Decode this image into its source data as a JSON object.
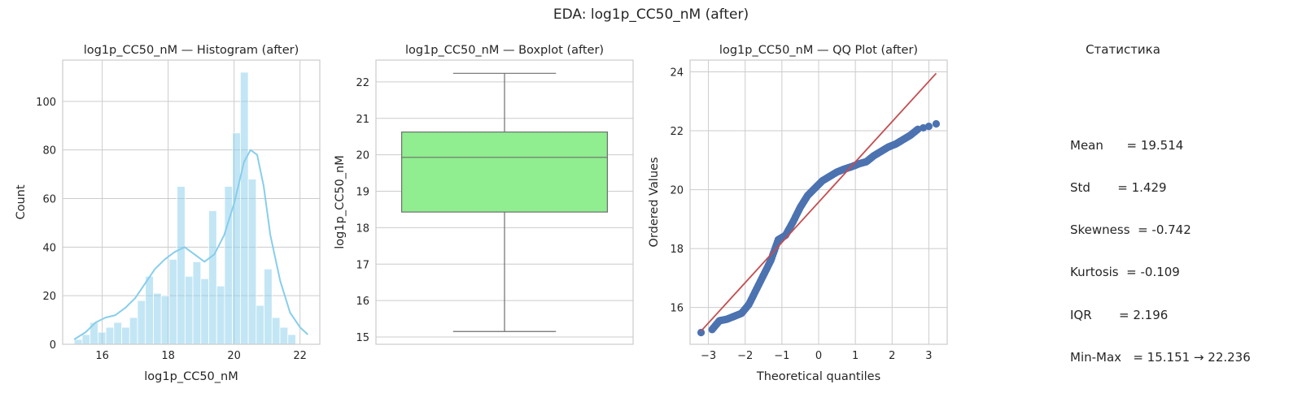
{
  "figure_title": "EDA: log1p_CC50_nM (after)",
  "colors": {
    "hist": "#87ceeb",
    "box": "#90ee90",
    "qq_points": "#4c72b0",
    "qq_line": "#c44e52",
    "grid": "#cccccc"
  },
  "chart_data": [
    {
      "type": "bar",
      "title": "log1p_CC50_nM — Histogram (after)",
      "xlabel": "log1p_CC50_nM",
      "ylabel": "Count",
      "xlim": [
        14.8,
        22.6
      ],
      "ylim": [
        0,
        117
      ],
      "xticks": [
        16,
        18,
        20,
        22
      ],
      "yticks": [
        0,
        20,
        40,
        60,
        80,
        100
      ],
      "grid": true,
      "bin_edges": [
        15.151,
        15.391,
        15.631,
        15.871,
        16.111,
        16.351,
        16.591,
        16.831,
        17.071,
        17.311,
        17.551,
        17.791,
        18.031,
        18.271,
        18.511,
        18.751,
        18.991,
        19.231,
        19.471,
        19.711,
        19.951,
        20.191,
        20.431,
        20.671,
        20.911,
        21.151,
        21.391,
        21.631,
        21.871,
        22.111,
        22.351
      ],
      "values": [
        2,
        4,
        9,
        5,
        7,
        9,
        7,
        11,
        18,
        28,
        21,
        20,
        35,
        65,
        28,
        34,
        27,
        55,
        24,
        65,
        87,
        112,
        68,
        16,
        31,
        11,
        7,
        4,
        0,
        0
      ],
      "kde": {
        "x": [
          15.15,
          15.5,
          15.8,
          16.1,
          16.4,
          16.7,
          17.0,
          17.3,
          17.6,
          17.9,
          18.2,
          18.5,
          18.8,
          19.1,
          19.4,
          19.7,
          20.0,
          20.3,
          20.5,
          20.7,
          20.9,
          21.1,
          21.4,
          21.7,
          22.0,
          22.236
        ],
        "y": [
          2,
          5,
          9,
          11,
          12,
          15,
          19,
          25,
          31,
          35,
          38,
          40,
          37,
          34,
          37,
          45,
          58,
          75,
          80,
          78,
          65,
          45,
          26,
          13,
          7,
          4
        ]
      }
    },
    {
      "type": "box",
      "title": "log1p_CC50_nM — Boxplot (after)",
      "ylabel": "log1p_CC50_nM",
      "ylim": [
        14.8,
        22.6
      ],
      "yticks": [
        15,
        16,
        17,
        18,
        19,
        20,
        21,
        22
      ],
      "grid": true,
      "min": 15.151,
      "q1": 18.43,
      "median": 19.93,
      "q3": 20.626,
      "max": 22.236
    },
    {
      "type": "scatter",
      "title": "log1p_CC50_nM — QQ Plot (after)",
      "xlabel": "Theoretical quantiles",
      "ylabel": "Ordered Values",
      "xlim": [
        -3.5,
        3.5
      ],
      "ylim": [
        14.75,
        24.4
      ],
      "xticks": [
        -3,
        -2,
        -1,
        0,
        1,
        2,
        3
      ],
      "yticks": [
        16,
        18,
        20,
        22,
        24
      ],
      "grid": true,
      "points": {
        "x": [
          -3.2,
          -2.9,
          -2.7,
          -2.5,
          -2.3,
          -2.1,
          -1.9,
          -1.7,
          -1.5,
          -1.3,
          -1.1,
          -0.9,
          -0.7,
          -0.5,
          -0.3,
          -0.1,
          0.1,
          0.3,
          0.5,
          0.7,
          0.9,
          1.1,
          1.3,
          1.5,
          1.7,
          1.9,
          2.1,
          2.3,
          2.5,
          2.7,
          2.85,
          3.0,
          3.2
        ],
        "y": [
          15.15,
          15.25,
          15.55,
          15.6,
          15.7,
          15.8,
          16.1,
          16.6,
          17.1,
          17.6,
          18.3,
          18.45,
          18.9,
          19.4,
          19.8,
          20.05,
          20.3,
          20.45,
          20.6,
          20.7,
          20.78,
          20.88,
          20.95,
          21.15,
          21.3,
          21.45,
          21.55,
          21.7,
          21.85,
          22.05,
          22.1,
          22.15,
          22.236
        ]
      },
      "line": {
        "x": [
          -3.2,
          3.2
        ],
        "y": [
          15.2,
          23.95
        ]
      }
    }
  ],
  "stats": {
    "title": "Статистика",
    "lines": [
      "Mean      = 19.514",
      "Std       = 1.429",
      "Skewness  = -0.742",
      "Kurtosis  = -0.109",
      "IQR       = 2.196",
      "Min-Max   = 15.151 → 22.236"
    ]
  }
}
